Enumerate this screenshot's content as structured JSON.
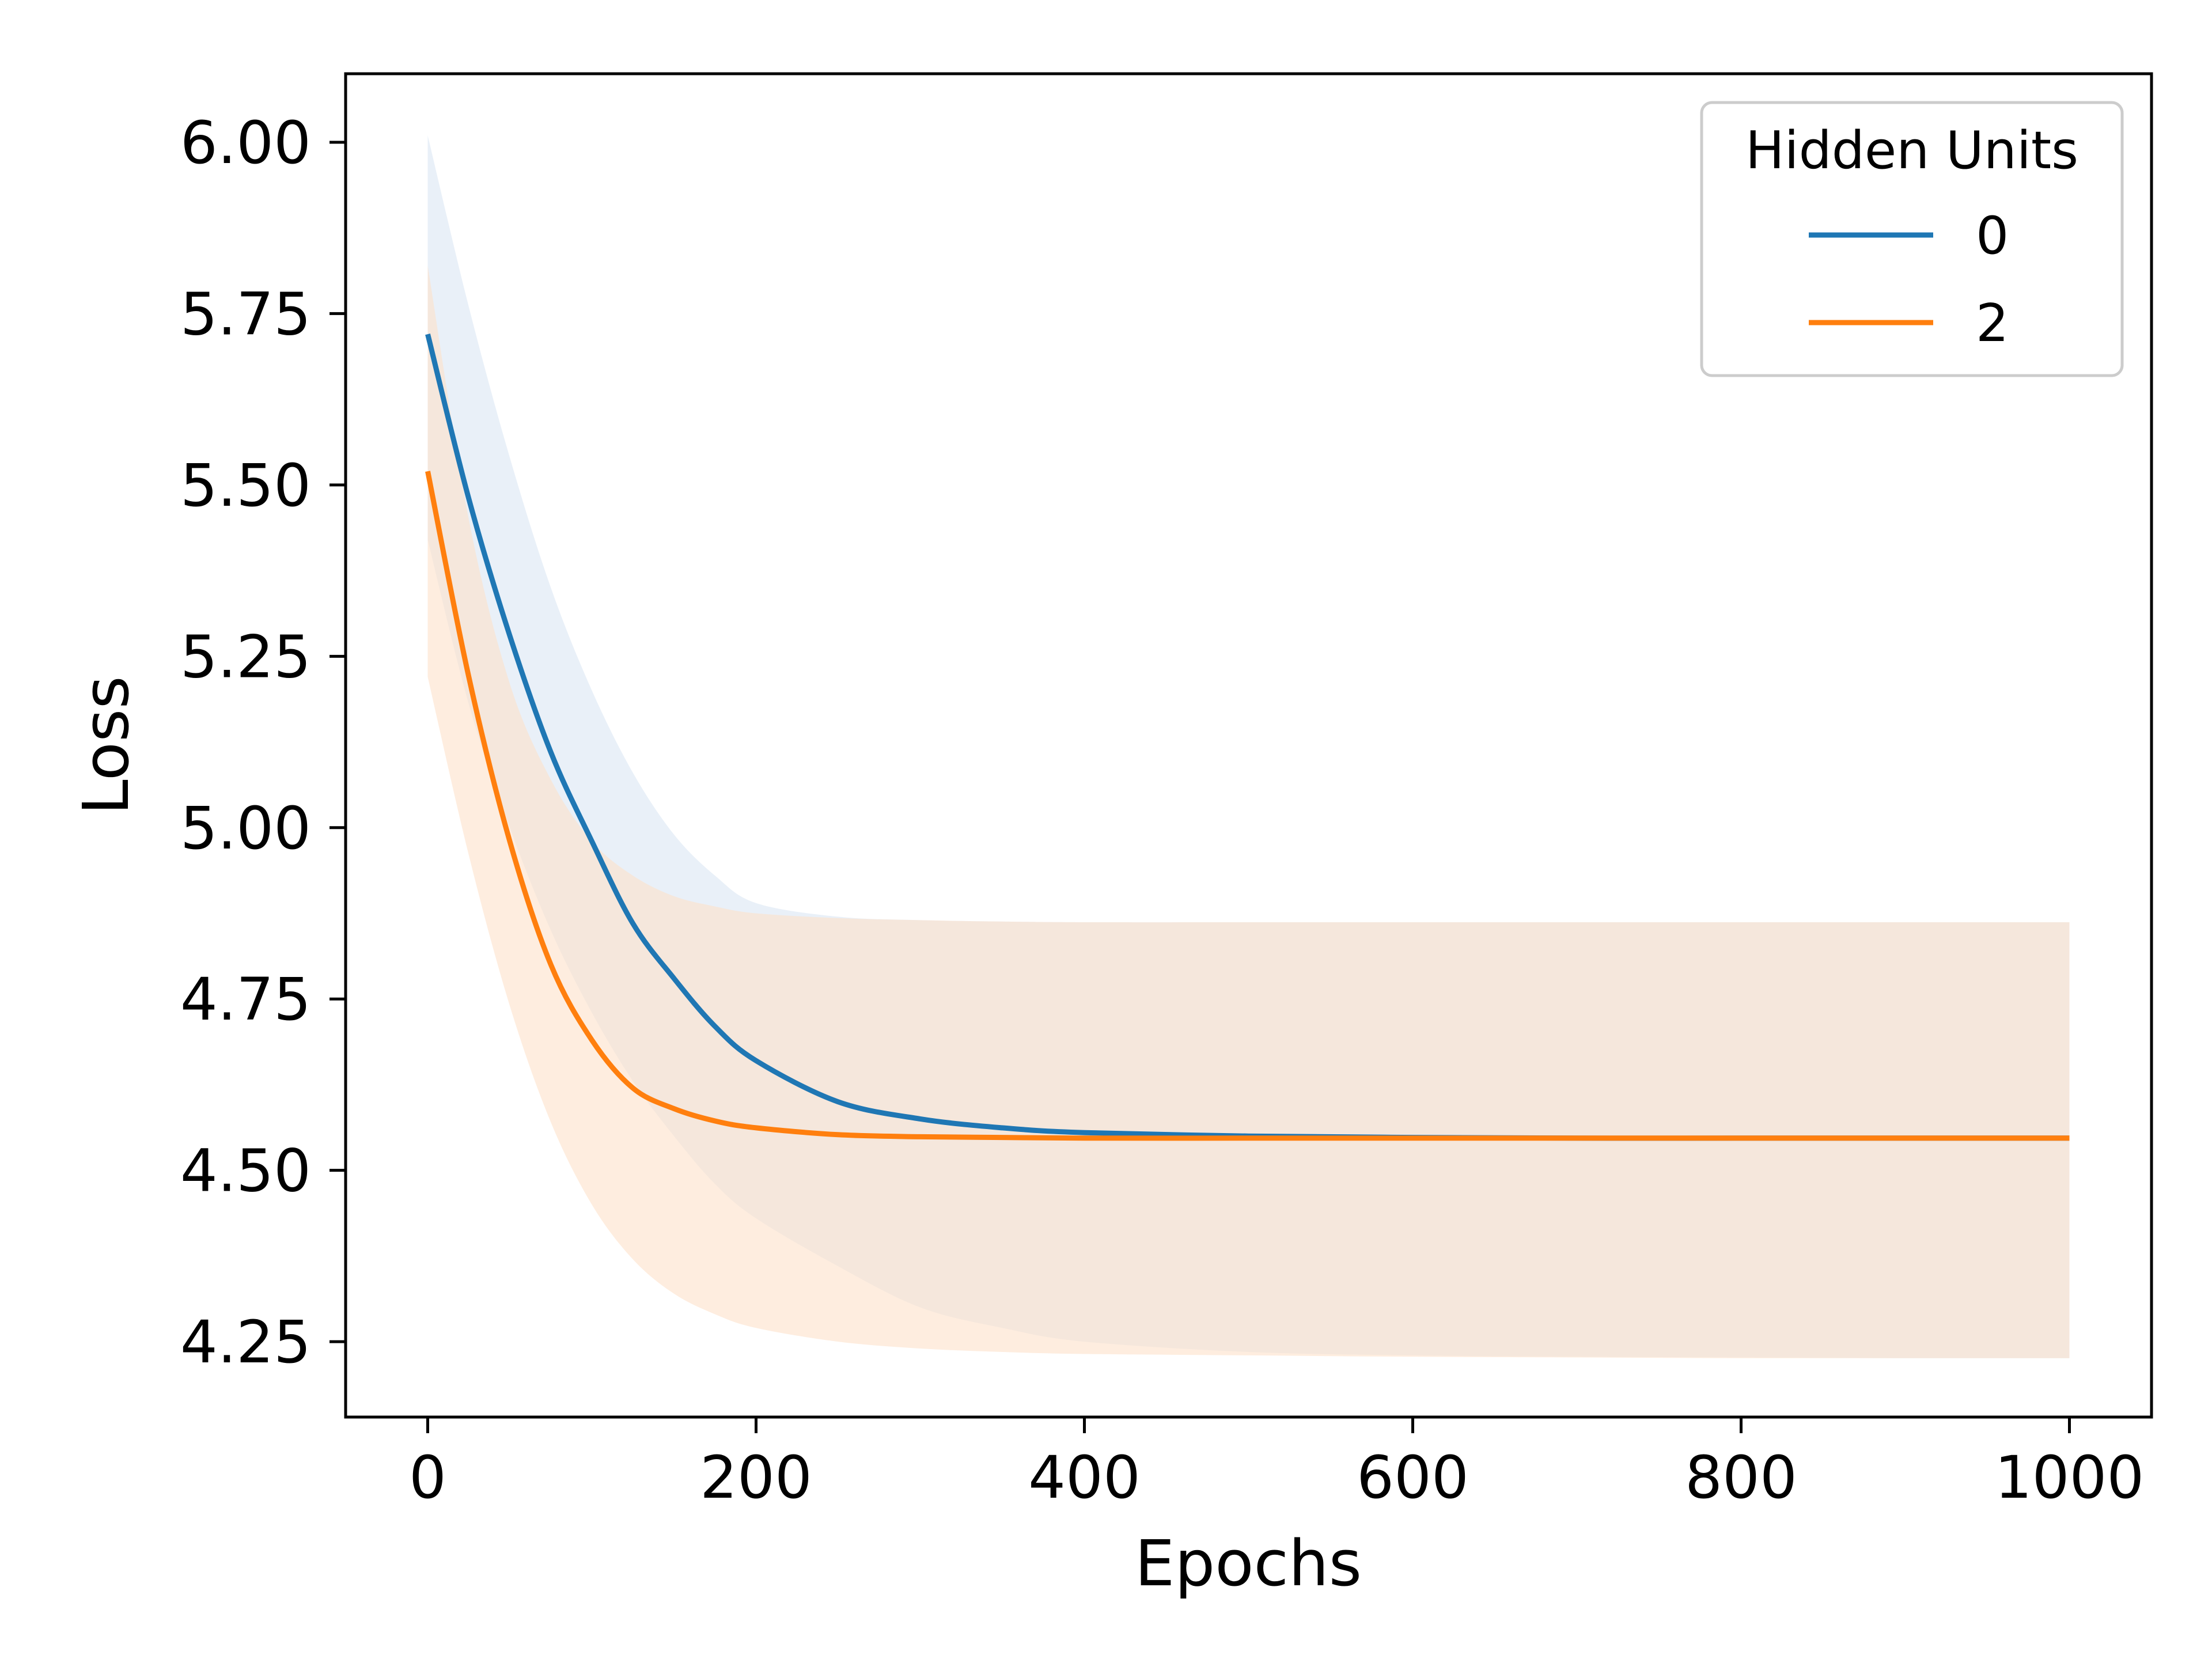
{
  "chart_data": {
    "type": "line",
    "title": "",
    "xlabel": "Epochs",
    "ylabel": "Loss",
    "xlim": [
      -50,
      1050
    ],
    "ylim": [
      4.14,
      6.1
    ],
    "x_ticks": [
      0,
      200,
      400,
      600,
      800,
      1000
    ],
    "x_tick_labels": [
      "0",
      "200",
      "400",
      "600",
      "800",
      "1000"
    ],
    "y_ticks": [
      4.25,
      4.5,
      4.75,
      5.0,
      5.25,
      5.5,
      5.75,
      6.0
    ],
    "y_tick_labels": [
      "4.25",
      "4.50",
      "4.75",
      "5.00",
      "5.25",
      "5.50",
      "5.75",
      "6.00"
    ],
    "grid": false,
    "legend": {
      "title": "Hidden Units",
      "placement": "top-right"
    },
    "x": [
      0,
      25,
      50,
      75,
      100,
      125,
      150,
      175,
      200,
      250,
      300,
      350,
      400,
      500,
      600,
      700,
      800,
      900,
      1000
    ],
    "series": [
      {
        "name": "0",
        "color": "#1f77b4",
        "band_color": "#dbe6f3",
        "values": [
          5.72,
          5.48,
          5.28,
          5.11,
          4.98,
          4.86,
          4.78,
          4.71,
          4.66,
          4.6,
          4.575,
          4.562,
          4.555,
          4.55,
          4.548,
          4.547,
          4.547,
          4.547,
          4.547
        ],
        "upper": [
          6.01,
          5.76,
          5.54,
          5.35,
          5.2,
          5.08,
          4.99,
          4.93,
          4.89,
          4.87,
          4.865,
          4.863,
          4.862,
          4.862,
          4.862,
          4.862,
          4.862,
          4.862,
          4.862
        ],
        "lower": [
          5.42,
          5.18,
          5.0,
          4.85,
          4.73,
          4.63,
          4.55,
          4.48,
          4.43,
          4.36,
          4.3,
          4.27,
          4.25,
          4.235,
          4.23,
          4.228,
          4.227,
          4.226,
          4.226
        ]
      },
      {
        "name": "2",
        "color": "#ff7f0e",
        "band_color": "#fde1c9",
        "values": [
          5.52,
          5.22,
          4.98,
          4.8,
          4.69,
          4.62,
          4.59,
          4.572,
          4.562,
          4.552,
          4.549,
          4.548,
          4.547,
          4.547,
          4.547,
          4.547,
          4.547,
          4.547,
          4.547
        ],
        "upper": [
          5.82,
          5.45,
          5.21,
          5.07,
          4.98,
          4.93,
          4.9,
          4.885,
          4.875,
          4.868,
          4.865,
          4.863,
          4.862,
          4.862,
          4.862,
          4.862,
          4.862,
          4.862,
          4.862
        ],
        "lower": [
          5.22,
          4.96,
          4.74,
          4.57,
          4.45,
          4.37,
          4.32,
          4.29,
          4.27,
          4.25,
          4.24,
          4.235,
          4.232,
          4.23,
          4.228,
          4.227,
          4.226,
          4.226,
          4.226
        ]
      }
    ]
  }
}
